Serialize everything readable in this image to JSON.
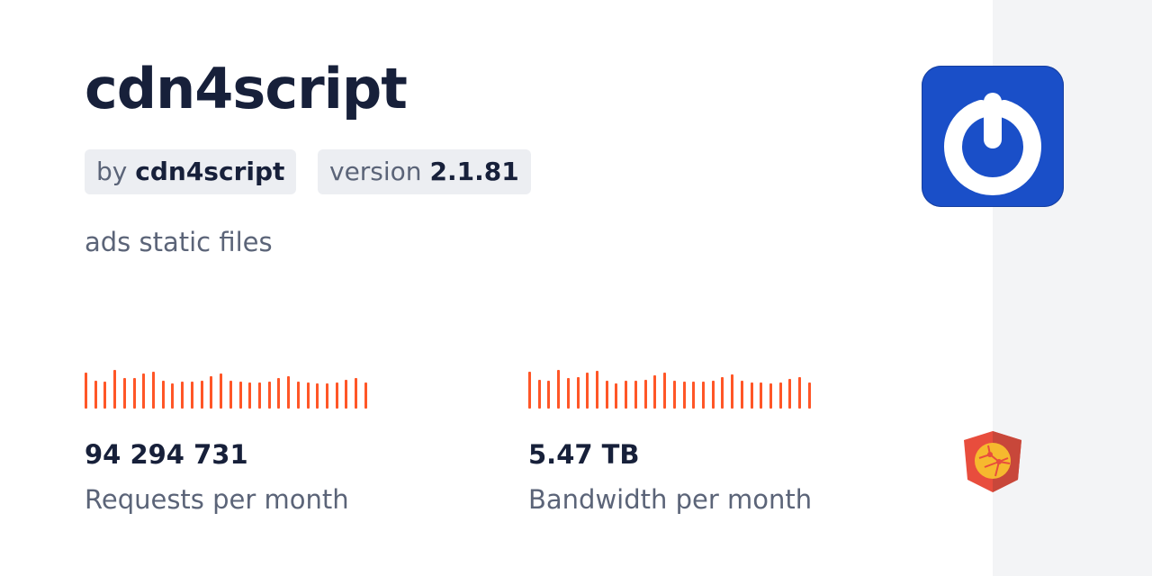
{
  "package": {
    "name": "cdn4script",
    "by_prefix": "by",
    "author": "cdn4script",
    "version_prefix": "version",
    "version": "2.1.81",
    "description": "ads static files"
  },
  "stats": [
    {
      "value": "94 294 731",
      "label": "Requests per month",
      "bars": [
        117,
        92,
        89,
        127,
        101,
        101,
        114,
        120,
        92,
        82,
        89,
        89,
        92,
        107,
        114,
        92,
        89,
        85,
        85,
        89,
        101,
        107,
        89,
        85,
        82,
        82,
        85,
        95,
        101,
        85
      ]
    },
    {
      "value": "5.47 TB",
      "label": "Bandwidth per month",
      "bars": [
        120,
        95,
        92,
        127,
        101,
        104,
        117,
        124,
        92,
        82,
        92,
        92,
        95,
        108,
        117,
        92,
        89,
        89,
        89,
        92,
        104,
        111,
        92,
        85,
        85,
        82,
        85,
        98,
        104,
        85
      ]
    }
  ],
  "colors": {
    "accent": "#ff5627",
    "logo_bg": "#1a4fc8",
    "title": "#17203a",
    "muted": "#5b6478"
  },
  "icons": {
    "logo": "power-icon",
    "brand": "jsdelivr-shield-icon"
  }
}
